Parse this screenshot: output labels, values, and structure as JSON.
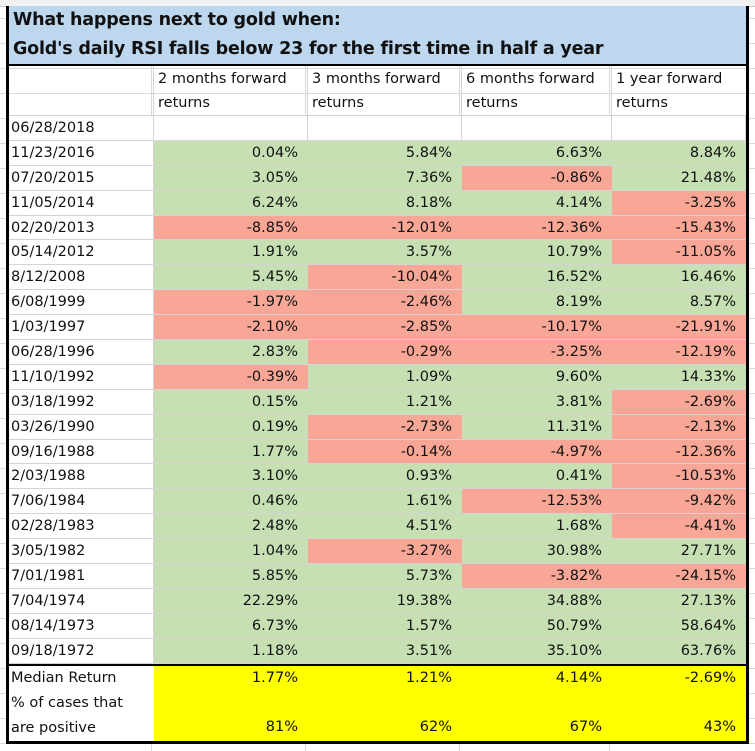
{
  "title": {
    "line1": "What happens next to gold when:",
    "line2": "Gold's daily RSI falls below 23 for the first time in half a year"
  },
  "headers": [
    {
      "line1": "",
      "line2": ""
    },
    {
      "line1": "2 months forward",
      "line2": "returns"
    },
    {
      "line1": "3 months forward",
      "line2": "returns"
    },
    {
      "line1": "6 months forward",
      "line2": "returns"
    },
    {
      "line1": "1 year forward",
      "line2": "returns"
    }
  ],
  "colors": {
    "positive": "#c6e0b4",
    "negative": "#f8a796",
    "summary": "#ffff00",
    "title_bg": "#bdd7ee"
  },
  "rows": [
    {
      "date": "06/28/2018",
      "values": [
        "",
        "",
        "",
        ""
      ]
    },
    {
      "date": "11/23/2016",
      "values": [
        "0.04%",
        "5.84%",
        "6.63%",
        "8.84%"
      ]
    },
    {
      "date": "07/20/2015",
      "values": [
        "3.05%",
        "7.36%",
        "-0.86%",
        "21.48%"
      ]
    },
    {
      "date": "11/05/2014",
      "values": [
        "6.24%",
        "8.18%",
        "4.14%",
        "-3.25%"
      ]
    },
    {
      "date": "02/20/2013",
      "values": [
        "-8.85%",
        "-12.01%",
        "-12.36%",
        "-15.43%"
      ]
    },
    {
      "date": "05/14/2012",
      "values": [
        "1.91%",
        "3.57%",
        "10.79%",
        "-11.05%"
      ]
    },
    {
      "date": "8/12/2008",
      "values": [
        "5.45%",
        "-10.04%",
        "16.52%",
        "16.46%"
      ]
    },
    {
      "date": "6/08/1999",
      "values": [
        "-1.97%",
        "-2.46%",
        "8.19%",
        "8.57%"
      ]
    },
    {
      "date": "1/03/1997",
      "values": [
        "-2.10%",
        "-2.85%",
        "-10.17%",
        "-21.91%"
      ]
    },
    {
      "date": "06/28/1996",
      "values": [
        "2.83%",
        "-0.29%",
        "-3.25%",
        "-12.19%"
      ]
    },
    {
      "date": "11/10/1992",
      "values": [
        "-0.39%",
        "1.09%",
        "9.60%",
        "14.33%"
      ]
    },
    {
      "date": "03/18/1992",
      "values": [
        "0.15%",
        "1.21%",
        "3.81%",
        "-2.69%"
      ]
    },
    {
      "date": "03/26/1990",
      "values": [
        "0.19%",
        "-2.73%",
        "11.31%",
        "-2.13%"
      ]
    },
    {
      "date": "09/16/1988",
      "values": [
        "1.77%",
        "-0.14%",
        "-4.97%",
        "-12.36%"
      ]
    },
    {
      "date": "2/03/1988",
      "values": [
        "3.10%",
        "0.93%",
        "0.41%",
        "-10.53%"
      ]
    },
    {
      "date": "7/06/1984",
      "values": [
        "0.46%",
        "1.61%",
        "-12.53%",
        "-9.42%"
      ]
    },
    {
      "date": "02/28/1983",
      "values": [
        "2.48%",
        "4.51%",
        "1.68%",
        "-4.41%"
      ]
    },
    {
      "date": "3/05/1982",
      "values": [
        "1.04%",
        "-3.27%",
        "30.98%",
        "27.71%"
      ]
    },
    {
      "date": "7/01/1981",
      "values": [
        "5.85%",
        "5.73%",
        "-3.82%",
        "-24.15%"
      ]
    },
    {
      "date": "7/04/1974",
      "values": [
        "22.29%",
        "19.38%",
        "34.88%",
        "27.13%"
      ]
    },
    {
      "date": "08/14/1973",
      "values": [
        "6.73%",
        "1.57%",
        "50.79%",
        "58.64%"
      ]
    },
    {
      "date": "09/18/1972",
      "values": [
        "1.18%",
        "3.51%",
        "35.10%",
        "63.76%"
      ]
    }
  ],
  "summary": {
    "median_label": "Median Return",
    "median_values": [
      "1.77%",
      "1.21%",
      "4.14%",
      "-2.69%"
    ],
    "positive_label_line1": "% of cases that",
    "positive_label_line2": "are positive",
    "positive_values": [
      "81%",
      "62%",
      "67%",
      "43%"
    ]
  }
}
